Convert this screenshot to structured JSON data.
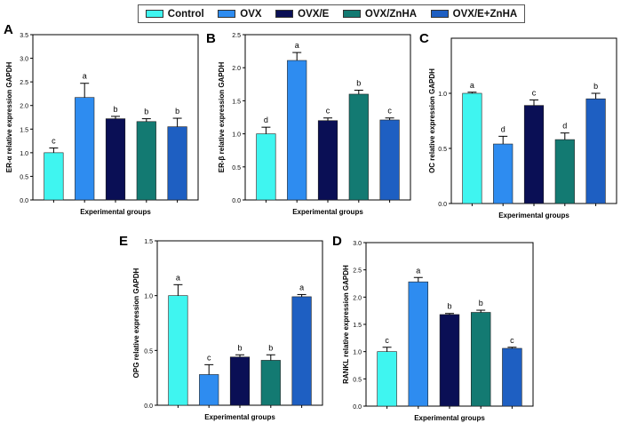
{
  "legend": [
    {
      "label": "Control",
      "color": "#3FF5F0"
    },
    {
      "label": "OVX",
      "color": "#2E8CF0"
    },
    {
      "label": "OVX/E",
      "color": "#0A0F55"
    },
    {
      "label": "OVX/ZnHA",
      "color": "#137A72"
    },
    {
      "label": "OVX/E+ZnHA",
      "color": "#1E5FC2"
    }
  ],
  "chart_data": [
    {
      "panel": "A",
      "type": "bar",
      "categories": [
        "Control",
        "OVX",
        "OVX/E",
        "OVX/ZnHA",
        "OVX/E+ZnHA"
      ],
      "values": [
        1.0,
        2.17,
        1.72,
        1.66,
        1.55
      ],
      "errors": [
        0.1,
        0.3,
        0.05,
        0.06,
        0.18
      ],
      "labels": [
        "c",
        "a",
        "b",
        "b",
        "b"
      ],
      "ylabel": "ER-α relative expression GAPDH",
      "xlabel": "Experimental groups",
      "ylim": [
        0,
        3.5
      ],
      "ticks": [
        0.0,
        0.5,
        1.0,
        1.5,
        2.0,
        2.5,
        3.0,
        3.5
      ],
      "tick_labels": [
        "0.0",
        "0.5",
        "1.0",
        "1.5",
        "2.0",
        "2.5",
        "3.0",
        "3.5"
      ]
    },
    {
      "panel": "B",
      "type": "bar",
      "categories": [
        "Control",
        "OVX",
        "OVX/E",
        "OVX/ZnHA",
        "OVX/E+ZnHA"
      ],
      "values": [
        1.0,
        2.11,
        1.2,
        1.6,
        1.21
      ],
      "errors": [
        0.1,
        0.12,
        0.04,
        0.06,
        0.03
      ],
      "labels": [
        "d",
        "a",
        "c",
        "b",
        "c"
      ],
      "ylabel": "ER-β relative expression GAPDH",
      "xlabel": "Experimental groups",
      "ylim": [
        0,
        2.5
      ],
      "ticks": [
        0.0,
        0.5,
        1.0,
        1.5,
        2.0,
        2.5
      ],
      "tick_labels": [
        "0.0",
        "0.5",
        "1.0",
        "1.5",
        "2.0",
        "2.5"
      ]
    },
    {
      "panel": "C",
      "type": "bar",
      "categories": [
        "Control",
        "OVX",
        "OVX/E",
        "OVX/ZnHA",
        "OVX/E+ZnHA"
      ],
      "values": [
        1.0,
        0.54,
        0.89,
        0.58,
        0.95
      ],
      "errors": [
        0.01,
        0.07,
        0.05,
        0.06,
        0.05
      ],
      "labels": [
        "a",
        "d",
        "c",
        "d",
        "b"
      ],
      "ylabel": "OC relative expression GAPDH",
      "xlabel": "Experimental groups",
      "ylim": [
        0,
        1.5
      ],
      "ticks": [
        0.0,
        0.5,
        1.0
      ],
      "tick_labels": [
        "0.0",
        "0.5",
        "1.0"
      ]
    },
    {
      "panel": "E",
      "type": "bar",
      "categories": [
        "Control",
        "OVX",
        "OVX/E",
        "OVX/ZnHA",
        "OVX/E+ZnHA"
      ],
      "values": [
        1.0,
        0.28,
        0.44,
        0.41,
        0.99
      ],
      "errors": [
        0.1,
        0.09,
        0.02,
        0.05,
        0.02
      ],
      "labels": [
        "a",
        "c",
        "b",
        "b",
        "a"
      ],
      "ylabel": "OPG relative expression GAPDH",
      "xlabel": "Experimental groups",
      "ylim": [
        0,
        1.5
      ],
      "ticks": [
        0.0,
        0.5,
        1.0,
        1.5
      ],
      "tick_labels": [
        "0.0",
        "0.5",
        "1.0",
        "1.5"
      ]
    },
    {
      "panel": "D",
      "type": "bar",
      "categories": [
        "Control",
        "OVX",
        "OVX/E",
        "OVX/ZnHA",
        "OVX/E+ZnHA"
      ],
      "values": [
        1.0,
        2.28,
        1.68,
        1.72,
        1.06
      ],
      "errors": [
        0.08,
        0.08,
        0.02,
        0.04,
        0.02
      ],
      "labels": [
        "c",
        "a",
        "b",
        "b",
        "c"
      ],
      "ylabel": "RANKL relative expression GAPDH",
      "xlabel": "Experimental groups",
      "ylim": [
        0,
        3.0
      ],
      "ticks": [
        0.0,
        0.5,
        1.0,
        1.5,
        2.0,
        2.5,
        3.0
      ],
      "tick_labels": [
        "0.0",
        "0.5",
        "1.0",
        "1.5",
        "2.0",
        "2.5",
        "3.0"
      ]
    }
  ]
}
